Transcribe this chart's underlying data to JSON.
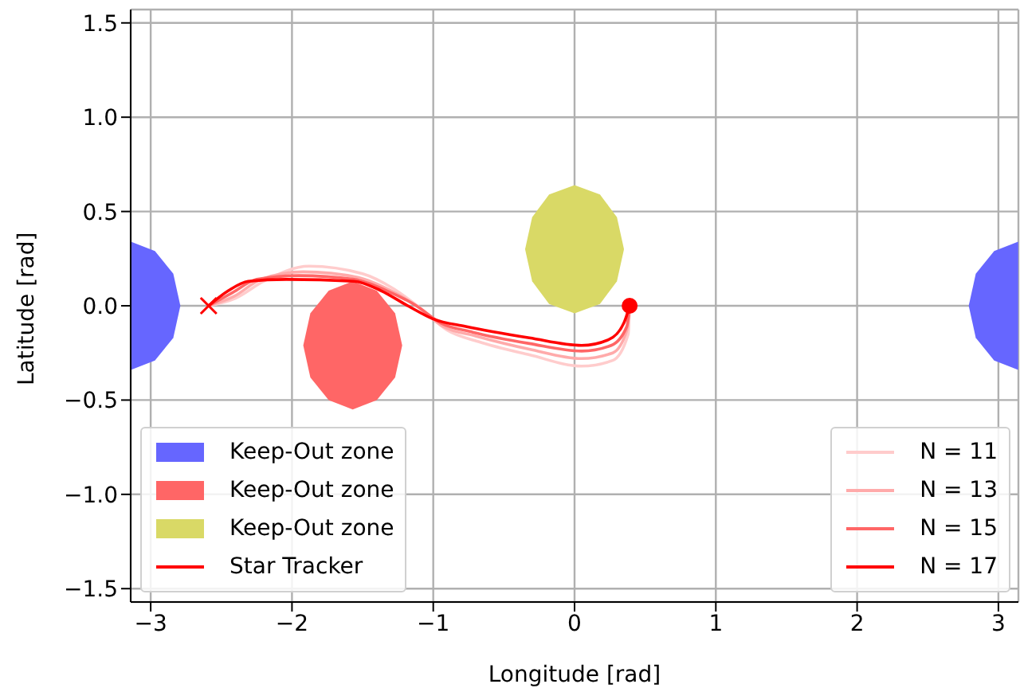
{
  "chart_data": {
    "type": "line",
    "xlabel": "Longitude [rad]",
    "ylabel": "Latitude [rad]",
    "xlim": [
      -3.1416,
      3.1416
    ],
    "ylim": [
      -1.5708,
      1.5708
    ],
    "xticks": [
      {
        "value": -3,
        "label": "−3"
      },
      {
        "value": -2,
        "label": "−2"
      },
      {
        "value": -1,
        "label": "−1"
      },
      0,
      1,
      2,
      3
    ],
    "yticks": [
      {
        "value": -1.5,
        "label": "−1.5"
      },
      {
        "value": -1,
        "label": "−1.0"
      },
      {
        "value": -0.5,
        "label": "−0.5"
      },
      {
        "value": 0,
        "label": "0.0"
      },
      {
        "value": 0.5,
        "label": "0.5"
      },
      {
        "value": 1,
        "label": "1.0"
      },
      {
        "value": 1.5,
        "label": "1.5"
      }
    ],
    "grid": true,
    "legend": "bottom left",
    "series": [
      {
        "type": "area",
        "name": "Keep-Out zone",
        "color": "#6666ff",
        "x": [
          -3.14,
          -2.97,
          -2.84,
          -2.79,
          -2.84,
          -2.97,
          -3.14,
          -3.14
        ],
        "values": [
          -0.34,
          -0.29,
          -0.17,
          0,
          0.17,
          0.29,
          0.34,
          -0.34
        ]
      },
      {
        "type": "area",
        "name": "Keep-Out zone",
        "color": "#ff6666",
        "x": [
          -1.22,
          -1.27,
          -1.4,
          -1.57,
          -1.74,
          -1.87,
          -1.92,
          -1.87,
          -1.74,
          -1.57,
          -1.4,
          -1.27,
          -1.22
        ],
        "values": [
          -0.21,
          -0.04,
          0.08,
          0.13,
          0.08,
          -0.04,
          -0.21,
          -0.38,
          -0.5,
          -0.55,
          -0.5,
          -0.38,
          -0.21
        ]
      },
      {
        "type": "area",
        "name": "Keep-Out zone",
        "color": "#d9d966",
        "x": [
          0.35,
          0.3,
          0.18,
          0,
          -0.18,
          -0.3,
          -0.35,
          -0.3,
          -0.18,
          0,
          0.18,
          0.3,
          0.35
        ],
        "values": [
          0.3,
          0.47,
          0.59,
          0.64,
          0.59,
          0.47,
          0.3,
          0.13,
          0.01,
          -0.04,
          0.01,
          0.13,
          0.3
        ]
      },
      {
        "type": "area",
        "color": "#6666ff",
        "x": [
          3.14,
          2.97,
          2.84,
          2.79,
          2.84,
          2.97,
          3.14,
          3.14
        ],
        "values": [
          0.34,
          0.29,
          0.17,
          0,
          -0.17,
          -0.29,
          -0.34,
          0.34
        ]
      },
      {
        "type": "scatter",
        "name": "Star Tracker",
        "color": "#ff0000",
        "x": [
          -2.59,
          0.39
        ],
        "values": [
          0,
          0
        ]
      },
      {
        "name": "N = 11",
        "color": "#ffcccc",
        "x": [
          -2.59,
          -2.4,
          -2.2,
          -1.88,
          -1.5,
          -1.28,
          -1.08,
          -0.9,
          -0.68,
          -0.32,
          0.05,
          0.27,
          0.38,
          0.39
        ],
        "values": [
          0,
          0.04,
          0.13,
          0.21,
          0.17,
          0.09,
          -0.02,
          -0.13,
          -0.19,
          -0.26,
          -0.32,
          -0.29,
          -0.15,
          0
        ]
      },
      {
        "name": "N = 13",
        "color": "#ffaaaa",
        "x": [
          -2.59,
          -2.41,
          -2.22,
          -1.92,
          -1.53,
          -1.3,
          -1.1,
          -0.93,
          -0.7,
          -0.32,
          0.05,
          0.27,
          0.37,
          0.39
        ],
        "values": [
          0,
          0.05,
          0.14,
          0.18,
          0.15,
          0.08,
          -0.01,
          -0.11,
          -0.16,
          -0.23,
          -0.28,
          -0.25,
          -0.13,
          0
        ]
      },
      {
        "name": "N = 15",
        "color": "#ff6666",
        "x": [
          -2.59,
          -2.42,
          -2.25,
          -1.95,
          -1.56,
          -1.33,
          -1.12,
          -0.95,
          -0.72,
          -0.32,
          0.05,
          0.26,
          0.37,
          0.39
        ],
        "values": [
          0,
          0.07,
          0.14,
          0.16,
          0.14,
          0.08,
          0,
          -0.09,
          -0.14,
          -0.2,
          -0.24,
          -0.21,
          -0.11,
          0
        ]
      },
      {
        "name": "N = 17",
        "color": "#ff0000",
        "x": [
          -2.59,
          -2.45,
          -2.31,
          -2.04,
          -1.56,
          -1.37,
          -1.18,
          -1.0,
          -0.77,
          -0.32,
          0.05,
          0.24,
          0.35,
          0.39
        ],
        "values": [
          0,
          0.08,
          0.13,
          0.14,
          0.13,
          0.08,
          0,
          -0.07,
          -0.11,
          -0.17,
          -0.21,
          -0.18,
          -0.09,
          0
        ]
      }
    ]
  }
}
